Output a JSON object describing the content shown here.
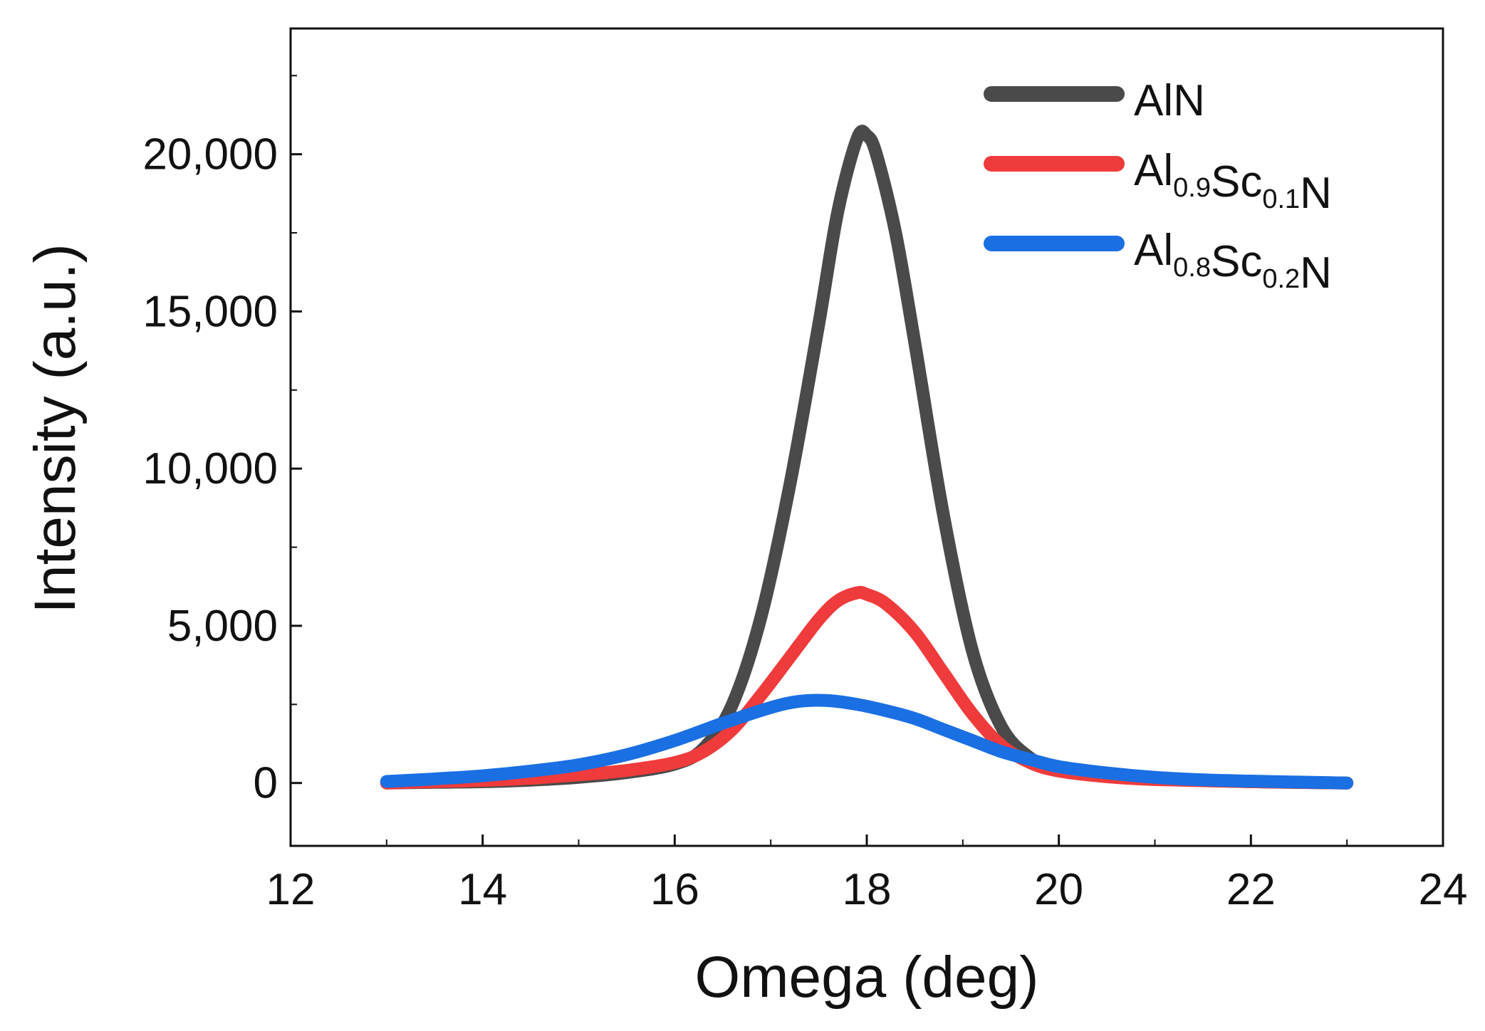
{
  "chart_data": {
    "type": "line",
    "title": "",
    "xlabel": "Omega (deg)",
    "ylabel": "Intensity (a.u.)",
    "xlim": [
      12,
      24
    ],
    "ylim": [
      -2000,
      24000
    ],
    "xticks": [
      12,
      14,
      16,
      18,
      20,
      22,
      24
    ],
    "xtick_labels": [
      "12",
      "14",
      "16",
      "18",
      "20",
      "22",
      "24"
    ],
    "yticks": [
      0,
      5000,
      10000,
      15000,
      20000
    ],
    "ytick_labels": [
      "0",
      "5,000",
      "10,000",
      "15,000",
      "20,000"
    ],
    "grid": false,
    "legend_position": "top-right",
    "series": [
      {
        "name": "AlN",
        "legend": {
          "base": "AlN",
          "parts": []
        },
        "color": "#4a4a4a",
        "x": [
          13.0,
          13.5,
          14.0,
          14.5,
          15.0,
          15.5,
          16.0,
          16.3,
          16.6,
          16.9,
          17.2,
          17.5,
          17.7,
          17.9,
          18.0,
          18.1,
          18.3,
          18.5,
          18.8,
          19.1,
          19.4,
          19.7,
          20.0,
          20.5,
          21.0,
          22.0,
          23.0
        ],
        "y": [
          0,
          20,
          40,
          90,
          180,
          330,
          600,
          1100,
          2500,
          5300,
          9500,
          14600,
          18200,
          20500,
          20600,
          20000,
          17500,
          14000,
          8500,
          4200,
          1800,
          800,
          400,
          220,
          130,
          40,
          0
        ]
      },
      {
        "name": "Al0.9Sc0.1N",
        "legend": {
          "base": "N",
          "parts": [
            [
              "Al",
              "0.9"
            ],
            [
              "Sc",
              "0.1"
            ]
          ]
        },
        "color": "#ef3b3b",
        "x": [
          13.0,
          13.5,
          14.0,
          14.5,
          15.0,
          15.5,
          16.0,
          16.3,
          16.6,
          16.9,
          17.2,
          17.5,
          17.7,
          17.9,
          18.0,
          18.2,
          18.5,
          18.8,
          19.1,
          19.4,
          19.7,
          20.0,
          20.5,
          21.0,
          22.0,
          23.0
        ],
        "y": [
          0,
          40,
          80,
          150,
          260,
          400,
          650,
          1000,
          1700,
          2800,
          4000,
          5200,
          5800,
          6050,
          6000,
          5700,
          4800,
          3500,
          2200,
          1200,
          650,
          380,
          200,
          110,
          40,
          0
        ]
      },
      {
        "name": "Al0.8Sc0.2N",
        "legend": {
          "base": "N",
          "parts": [
            [
              "Al",
              "0.8"
            ],
            [
              "Sc",
              "0.2"
            ]
          ]
        },
        "color": "#1a6fe3",
        "x": [
          13.0,
          13.5,
          14.0,
          14.5,
          15.0,
          15.5,
          16.0,
          16.5,
          17.0,
          17.3,
          17.6,
          17.9,
          18.2,
          18.5,
          18.8,
          19.1,
          19.4,
          19.7,
          20.0,
          20.5,
          21.0,
          21.5,
          22.0,
          22.5,
          23.0
        ],
        "y": [
          50,
          130,
          230,
          380,
          580,
          900,
          1350,
          1900,
          2400,
          2600,
          2620,
          2500,
          2300,
          2050,
          1700,
          1350,
          1000,
          750,
          520,
          320,
          180,
          100,
          60,
          30,
          0
        ]
      }
    ]
  }
}
